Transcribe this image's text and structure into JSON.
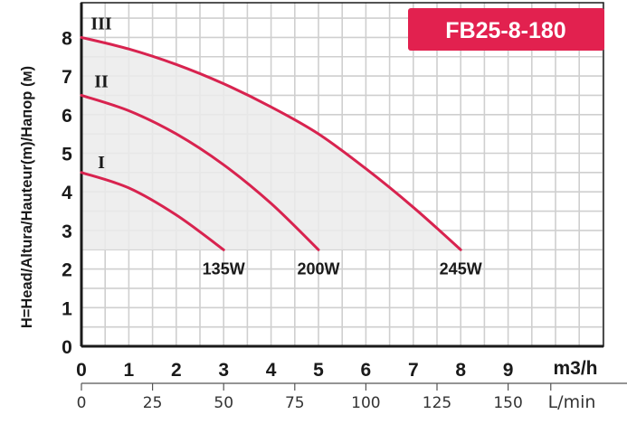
{
  "chart_data": {
    "type": "line",
    "title": "FB25-8-180",
    "title_bg_color": "#e2214f",
    "curve_color": "#d8234f",
    "fill_color": "#ebebeb",
    "ylabel": "H=Head/Altura/Hauteur(m)/Напор (м)",
    "x_unit": "m3/h",
    "x2_unit": "L/min",
    "xlim": [
      0,
      11
    ],
    "ylim": [
      0,
      8.75
    ],
    "x_ticks": [
      "0",
      "1",
      "2",
      "3",
      "4",
      "5",
      "6",
      "7",
      "8",
      "9"
    ],
    "y_ticks": [
      "0",
      "1",
      "2",
      "3",
      "4",
      "5",
      "6",
      "7",
      "8"
    ],
    "x2_ticks": [
      "0",
      "25",
      "50",
      "75",
      "100",
      "125",
      "150"
    ],
    "x2_tick_positions_lmin": [
      0,
      25,
      50,
      75,
      100,
      125,
      150
    ],
    "grid": true,
    "series": [
      {
        "name": "I",
        "power_label": "135W",
        "x": [
          0,
          1,
          2,
          3
        ],
        "y": [
          4.5,
          4.1,
          3.4,
          2.5
        ]
      },
      {
        "name": "II",
        "power_label": "200W",
        "x": [
          0,
          1,
          2,
          3,
          4,
          5
        ],
        "y": [
          6.5,
          6.1,
          5.5,
          4.7,
          3.7,
          2.5
        ]
      },
      {
        "name": "III",
        "power_label": "245W",
        "x": [
          0,
          1,
          2,
          3,
          4,
          5,
          6,
          7,
          8
        ],
        "y": [
          8.0,
          7.7,
          7.3,
          6.8,
          6.2,
          5.5,
          4.6,
          3.6,
          2.5
        ]
      }
    ]
  }
}
